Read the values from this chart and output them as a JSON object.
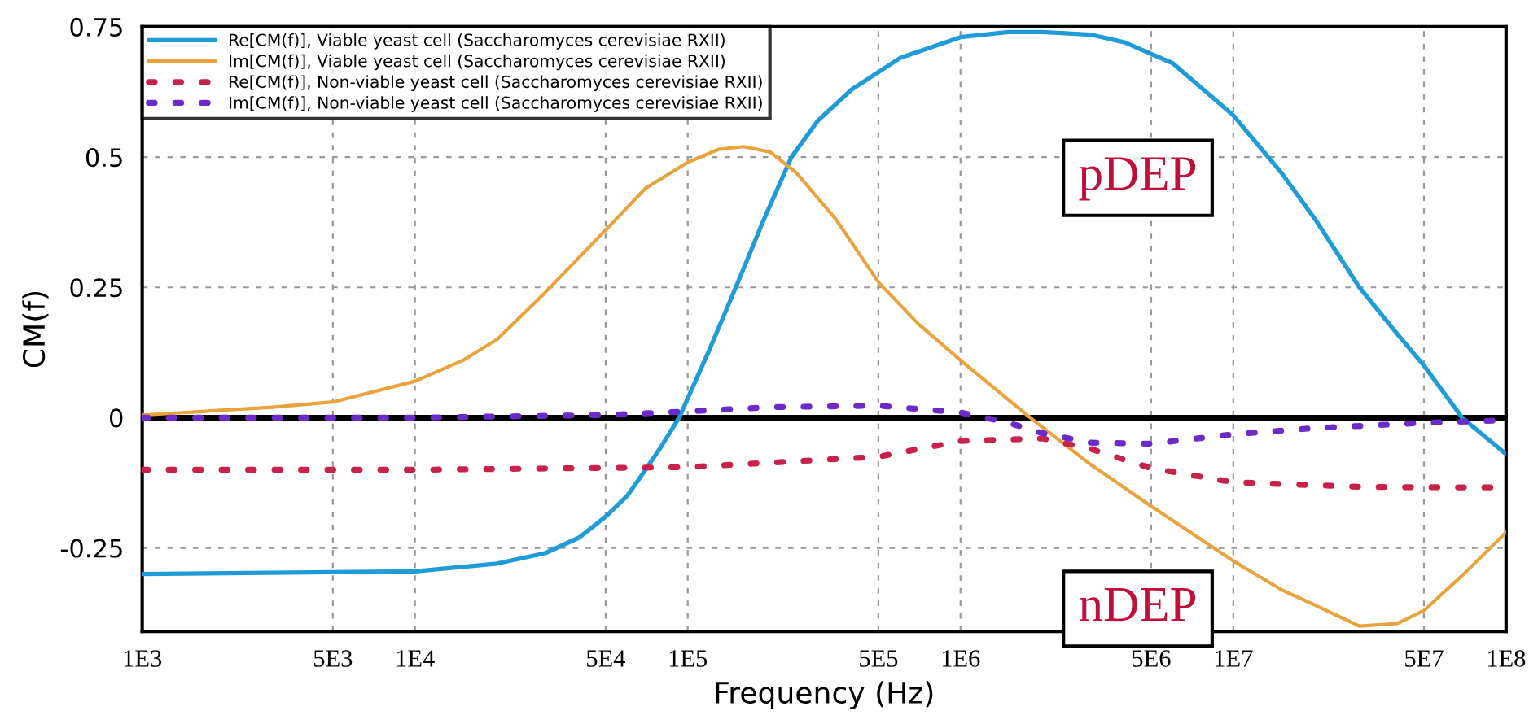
{
  "chart_data": {
    "type": "line",
    "xlabel": "Frequency (Hz)",
    "ylabel": "CM(f)",
    "log": "x",
    "xlim": [
      1000,
      100000000
    ],
    "ylim": [
      -0.41,
      0.75
    ],
    "xticks": [
      {
        "value": 1000,
        "label": "1E3"
      },
      {
        "value": 5000,
        "label": "5E3"
      },
      {
        "value": 10000,
        "label": "1E4"
      },
      {
        "value": 50000,
        "label": "5E4"
      },
      {
        "value": 100000,
        "label": "1E5"
      },
      {
        "value": 500000,
        "label": "5E5"
      },
      {
        "value": 1000000,
        "label": "1E6"
      },
      {
        "value": 5000000,
        "label": "5E6"
      },
      {
        "value": 10000000,
        "label": "1E7"
      },
      {
        "value": 50000000,
        "label": "5E7"
      },
      {
        "value": 100000000,
        "label": "1E8"
      }
    ],
    "yticks": [
      -0.25,
      0,
      0.25,
      0.5,
      0.75
    ],
    "grid": true,
    "legend": "top left",
    "marker": "none",
    "ref_lines": [
      {
        "axis": "y",
        "value": 0,
        "color": "#000000",
        "line_style": "solid"
      }
    ],
    "annotations": [
      "pDEP",
      "nDEP"
    ],
    "series": [
      {
        "name": "Re[CM(f)], Viable yeast cell (Saccharomyces cerevisiae RXII)",
        "color": "#1f9bd7",
        "line_style": "solid",
        "x": [
          1000,
          10000,
          20000,
          30000,
          40000,
          50000,
          60000,
          70000,
          80000,
          93000,
          120000,
          150000,
          190000,
          240000,
          300000,
          400000,
          600000,
          1000000,
          1500000,
          2000000,
          3000000,
          4000000,
          6000000,
          10000000,
          15000000,
          20000000,
          29000000,
          40000000,
          50000000,
          69000000,
          100000000
        ],
        "values": [
          -0.3,
          -0.295,
          -0.28,
          -0.26,
          -0.23,
          -0.19,
          -0.15,
          -0.1,
          -0.055,
          0.0,
          0.13,
          0.25,
          0.38,
          0.5,
          0.57,
          0.63,
          0.69,
          0.73,
          0.74,
          0.74,
          0.735,
          0.72,
          0.68,
          0.58,
          0.47,
          0.38,
          0.25,
          0.16,
          0.1,
          0.0,
          -0.07
        ]
      },
      {
        "name": "Im[CM(f)], Viable yeast cell (Saccharomyces cerevisiae RXII)",
        "color": "#e8a33d",
        "line_style": "solid",
        "x": [
          1000,
          3000,
          5000,
          10000,
          15000,
          20000,
          30000,
          50000,
          70000,
          100000,
          130000,
          160000,
          200000,
          250000,
          350000,
          500000,
          700000,
          1000000,
          1800000,
          3000000,
          5000000,
          10000000,
          15000000,
          20000000,
          29000000,
          40000000,
          50000000,
          70000000,
          100000000
        ],
        "values": [
          0.005,
          0.02,
          0.03,
          0.07,
          0.11,
          0.15,
          0.24,
          0.36,
          0.44,
          0.49,
          0.515,
          0.52,
          0.51,
          0.47,
          0.38,
          0.26,
          0.18,
          0.11,
          0.0,
          -0.09,
          -0.17,
          -0.275,
          -0.33,
          -0.36,
          -0.4,
          -0.395,
          -0.37,
          -0.3,
          -0.22
        ]
      },
      {
        "name": "Re[CM(f)], Non-viable yeast cell (Saccharomyces cerevisiae RXII)",
        "color": "#c8224a",
        "line_style": "dotted",
        "x": [
          1000,
          10000,
          100000,
          500000,
          1000000,
          2000000,
          3000000,
          5000000,
          10000000,
          30000000,
          100000000
        ],
        "values": [
          -0.1,
          -0.1,
          -0.095,
          -0.075,
          -0.045,
          -0.04,
          -0.06,
          -0.097,
          -0.124,
          -0.133,
          -0.134
        ]
      },
      {
        "name": "Im[CM(f)], Non-viable yeast cell (Saccharomyces cerevisiae RXII)",
        "color": "#6a2bc8",
        "line_style": "dotted",
        "x": [
          1000,
          10000,
          50000,
          100000,
          200000,
          500000,
          1000000,
          1500000,
          2000000,
          3000000,
          5000000,
          10000000,
          20000000,
          50000000,
          100000000
        ],
        "values": [
          0.0,
          0.0,
          0.005,
          0.012,
          0.02,
          0.023,
          0.01,
          -0.01,
          -0.03,
          -0.048,
          -0.05,
          -0.032,
          -0.02,
          -0.01,
          -0.005
        ]
      }
    ]
  }
}
